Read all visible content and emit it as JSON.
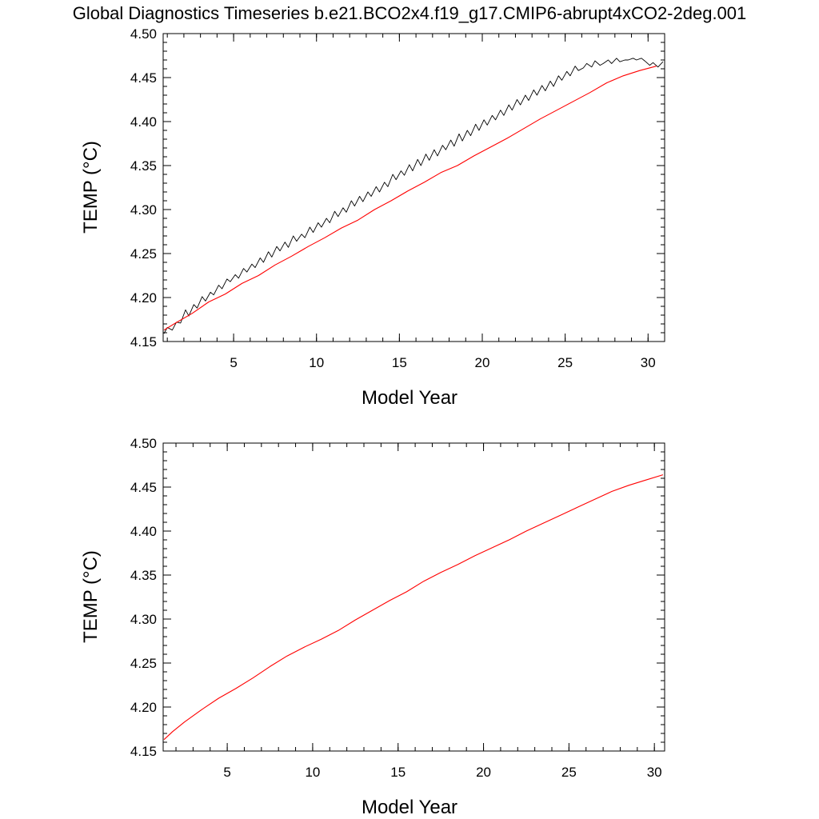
{
  "title": "Global Diagnostics Timeseries b.e21.BCO2x4.f19_g17.CMIP6-abrupt4xCO2-2deg.001",
  "colors": {
    "monthly": "#000000",
    "annual": "#ff0000"
  },
  "chart_data": [
    {
      "type": "line",
      "xlabel": "Model Year",
      "ylabel": "TEMP (°C)",
      "xlim": [
        0.75,
        31.0
      ],
      "ylim": [
        4.15,
        4.5
      ],
      "xticks": [
        5,
        10,
        15,
        20,
        25,
        30
      ],
      "yticks": [
        4.15,
        4.2,
        4.25,
        4.3,
        4.35,
        4.4,
        4.45,
        4.5
      ],
      "series": [
        {
          "style": "monthly",
          "color": "#000000",
          "x": [
            0.8,
            1.0,
            1.3,
            1.55,
            1.8,
            2.1,
            2.3,
            2.6,
            2.8,
            3.1,
            3.3,
            3.6,
            3.8,
            4.1,
            4.3,
            4.6,
            4.8,
            5.1,
            5.3,
            5.6,
            5.8,
            6.1,
            6.3,
            6.6,
            6.8,
            7.1,
            7.3,
            7.6,
            7.8,
            8.1,
            8.3,
            8.6,
            8.8,
            9.1,
            9.3,
            9.6,
            9.8,
            10.1,
            10.3,
            10.6,
            10.8,
            11.1,
            11.3,
            11.6,
            11.8,
            12.1,
            12.3,
            12.6,
            12.8,
            13.1,
            13.3,
            13.6,
            13.8,
            14.1,
            14.3,
            14.6,
            14.8,
            15.1,
            15.3,
            15.6,
            15.8,
            16.1,
            16.3,
            16.6,
            16.8,
            17.1,
            17.3,
            17.6,
            17.8,
            18.1,
            18.3,
            18.6,
            18.8,
            19.1,
            19.3,
            19.6,
            19.8,
            20.1,
            20.3,
            20.6,
            20.8,
            21.1,
            21.3,
            21.6,
            21.8,
            22.1,
            22.3,
            22.6,
            22.8,
            23.1,
            23.3,
            23.6,
            23.8,
            24.1,
            24.3,
            24.6,
            24.8,
            25.1,
            25.3,
            25.6,
            25.8,
            26.1,
            26.3,
            26.6,
            26.8,
            27.1,
            27.3,
            27.6,
            27.8,
            28.1,
            28.3,
            28.6,
            28.8,
            29.1,
            29.3,
            29.6,
            29.8,
            30.1,
            30.3,
            30.6,
            30.9
          ],
          "y": [
            4.159,
            4.166,
            4.163,
            4.172,
            4.171,
            4.186,
            4.179,
            4.192,
            4.188,
            4.201,
            4.196,
            4.206,
            4.203,
            4.214,
            4.21,
            4.221,
            4.218,
            4.226,
            4.222,
            4.233,
            4.229,
            4.238,
            4.234,
            4.245,
            4.24,
            4.252,
            4.246,
            4.258,
            4.253,
            4.263,
            4.257,
            4.27,
            4.264,
            4.272,
            4.268,
            4.28,
            4.274,
            4.285,
            4.28,
            4.29,
            4.285,
            4.298,
            4.292,
            4.302,
            4.297,
            4.31,
            4.304,
            4.315,
            4.309,
            4.32,
            4.315,
            4.326,
            4.32,
            4.331,
            4.326,
            4.34,
            4.334,
            4.344,
            4.339,
            4.351,
            4.344,
            4.357,
            4.35,
            4.363,
            4.356,
            4.368,
            4.361,
            4.373,
            4.368,
            4.379,
            4.372,
            4.386,
            4.378,
            4.39,
            4.384,
            4.397,
            4.39,
            4.402,
            4.396,
            4.407,
            4.402,
            4.413,
            4.407,
            4.419,
            4.413,
            4.425,
            4.419,
            4.43,
            4.424,
            4.436,
            4.43,
            4.441,
            4.435,
            4.446,
            4.44,
            4.452,
            4.447,
            4.457,
            4.452,
            4.463,
            4.458,
            4.461,
            4.466,
            4.462,
            4.469,
            4.464,
            4.466,
            4.47,
            4.466,
            4.472,
            4.468,
            4.47,
            4.47,
            4.472,
            4.47,
            4.472,
            4.469,
            4.464,
            4.467,
            4.462,
            4.468
          ]
        },
        {
          "style": "annual",
          "color": "#ff0000",
          "x": [
            0.8,
            1.5,
            2.5,
            3.5,
            4.5,
            5.5,
            6.5,
            7.5,
            8.5,
            9.5,
            10.5,
            11.5,
            12.5,
            13.5,
            14.5,
            15.5,
            16.5,
            17.5,
            18.5,
            19.5,
            20.5,
            21.5,
            22.5,
            23.5,
            24.5,
            25.5,
            26.5,
            27.5,
            28.5,
            29.5,
            30.5
          ],
          "y": [
            4.163,
            4.171,
            4.182,
            4.195,
            4.204,
            4.216,
            4.225,
            4.237,
            4.247,
            4.258,
            4.268,
            4.279,
            4.288,
            4.3,
            4.31,
            4.321,
            4.331,
            4.342,
            4.35,
            4.361,
            4.371,
            4.381,
            4.392,
            4.403,
            4.413,
            4.423,
            4.433,
            4.444,
            4.452,
            4.458,
            4.463
          ]
        }
      ]
    },
    {
      "type": "line",
      "xlabel": "Model Year",
      "ylabel": "TEMP (°C)",
      "xlim": [
        1.25,
        30.6
      ],
      "ylim": [
        4.15,
        4.5
      ],
      "xticks": [
        5,
        10,
        15,
        20,
        25,
        30
      ],
      "yticks": [
        4.15,
        4.2,
        4.25,
        4.3,
        4.35,
        4.4,
        4.45,
        4.5
      ],
      "series": [
        {
          "style": "annual",
          "color": "#ff0000",
          "x": [
            1.3,
            1.8,
            2.5,
            3.5,
            4.5,
            5.5,
            6.5,
            7.5,
            8.5,
            9.5,
            10.5,
            11.5,
            12.5,
            13.5,
            14.5,
            15.5,
            16.5,
            17.5,
            18.5,
            19.5,
            20.5,
            21.5,
            22.5,
            23.5,
            24.5,
            25.5,
            26.5,
            27.5,
            28.5,
            29.5,
            30.5
          ],
          "y": [
            4.163,
            4.172,
            4.183,
            4.197,
            4.21,
            4.221,
            4.233,
            4.246,
            4.258,
            4.268,
            4.277,
            4.287,
            4.299,
            4.31,
            4.321,
            4.331,
            4.343,
            4.353,
            4.362,
            4.372,
            4.381,
            4.39,
            4.4,
            4.409,
            4.418,
            4.427,
            4.436,
            4.445,
            4.452,
            4.458,
            4.464
          ]
        }
      ]
    }
  ]
}
